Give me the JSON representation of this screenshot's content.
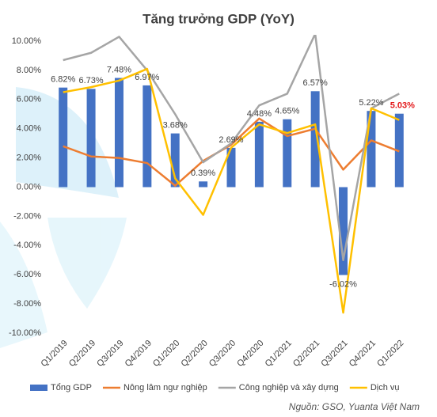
{
  "chart_data": {
    "type": "bar-line",
    "title": "Tăng trưởng GDP (YoY)",
    "source": "Nguồn: GSO, Yuanta Việt Nam",
    "categories": [
      "Q1/2019",
      "Q2/2019",
      "Q3/2019",
      "Q4/2019",
      "Q1/2020",
      "Q2/2020",
      "Q3/2020",
      "Q4/2020",
      "Q1/2021",
      "Q2/2021",
      "Q3/2021",
      "Q4/2021",
      "Q1/2022"
    ],
    "ylim": [
      -10,
      10
    ],
    "yticks": [
      {
        "value": -10,
        "label": "-10.00%"
      },
      {
        "value": -8,
        "label": "-8.00%"
      },
      {
        "value": -6,
        "label": "-6.00%"
      },
      {
        "value": -4,
        "label": "-4.00%"
      },
      {
        "value": -2,
        "label": "-2.00%"
      },
      {
        "value": 0,
        "label": "0.00%"
      },
      {
        "value": 2,
        "label": "2.00%"
      },
      {
        "value": 4,
        "label": "4.00%"
      },
      {
        "value": 6,
        "label": "6.00%"
      },
      {
        "value": 8,
        "label": "8.00%"
      },
      {
        "value": 10,
        "label": "10.00%"
      }
    ],
    "grid": false,
    "series": [
      {
        "name": "Tổng GDP",
        "kind": "bar",
        "color": "#4472c4",
        "values": [
          6.82,
          6.73,
          7.48,
          6.97,
          3.68,
          0.39,
          2.69,
          4.48,
          4.65,
          6.57,
          -6.02,
          5.22,
          5.03
        ],
        "value_labels": [
          "6.82%",
          "6.73%",
          "7.48%",
          "6.97%",
          "3.68%",
          "0.39%",
          "2.69%",
          "4.48%",
          "4.65%",
          "6.57%",
          "-6.02%",
          "5.22%",
          "5.03%"
        ],
        "highlight": {
          "index": 12,
          "color": "#e31a1c"
        }
      },
      {
        "name": "Nông lâm ngư nghiệp",
        "kind": "line",
        "color": "#ed7d31",
        "values": [
          2.8,
          2.1,
          2.0,
          1.65,
          0.1,
          1.8,
          2.9,
          4.7,
          3.5,
          4.0,
          1.2,
          3.2,
          2.45
        ]
      },
      {
        "name": "Công nghiệp và xây dựng",
        "kind": "line",
        "color": "#a5a5a5",
        "values": [
          8.7,
          9.2,
          10.3,
          8.0,
          5.0,
          1.7,
          3.0,
          5.6,
          6.4,
          10.5,
          -5.0,
          5.4,
          6.4
        ]
      },
      {
        "name": "Dịch vụ",
        "kind": "line",
        "color": "#ffc000",
        "values": [
          6.5,
          6.85,
          7.3,
          8.1,
          0.6,
          -1.9,
          2.7,
          4.3,
          3.7,
          4.3,
          -8.6,
          5.4,
          4.6
        ]
      }
    ]
  }
}
